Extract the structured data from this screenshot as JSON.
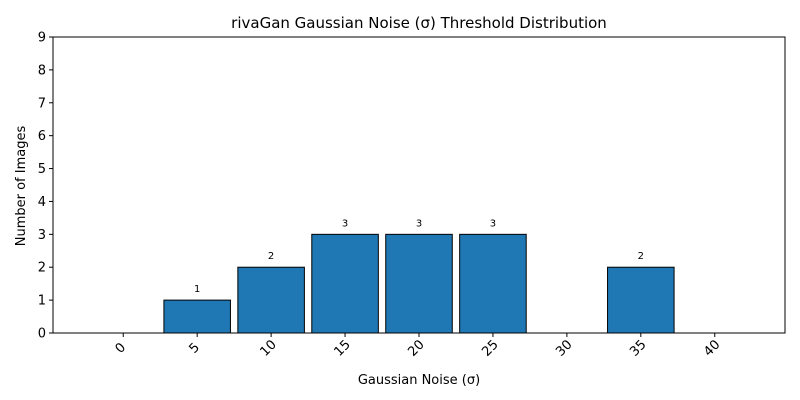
{
  "chart_data": {
    "type": "bar",
    "title": "rivaGan Gaussian Noise (σ) Threshold Distribution",
    "xlabel": "Gaussian Noise (σ)",
    "ylabel": "Number of Images",
    "categories": [
      "0",
      "5",
      "10",
      "15",
      "20",
      "25",
      "30",
      "35",
      "40"
    ],
    "values": [
      0,
      1,
      2,
      3,
      3,
      3,
      0,
      2,
      0
    ],
    "data_labels": [
      "",
      "1",
      "2",
      "3",
      "3",
      "3",
      "",
      "2",
      ""
    ],
    "yticks": [
      "0",
      "1",
      "2",
      "3",
      "4",
      "5",
      "6",
      "7",
      "8",
      "9"
    ],
    "ylim": [
      0,
      9
    ],
    "x_tick_rotation_deg": 45,
    "grid": false,
    "bar_color": "#1f77b4",
    "bar_edge_color": "#000000"
  }
}
